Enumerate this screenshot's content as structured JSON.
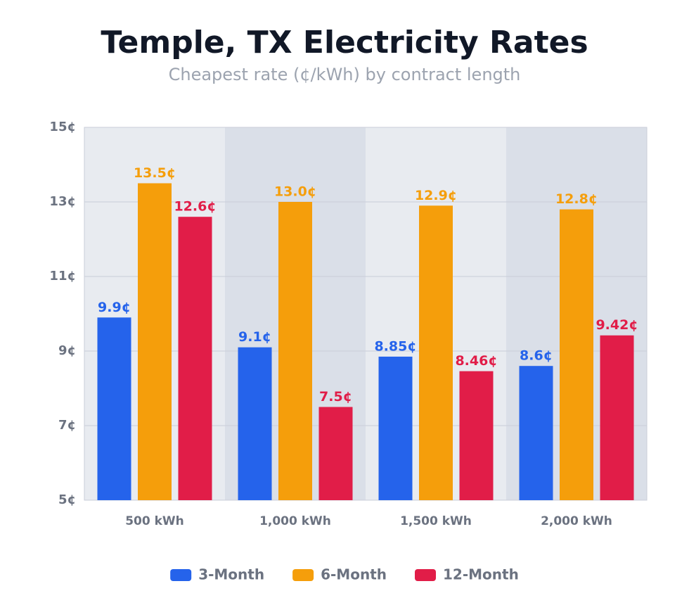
{
  "chart_data": {
    "type": "bar",
    "title": "Temple, TX Electricity Rates",
    "subtitle": "Cheapest rate (¢/kWh) by contract length",
    "categories": [
      "500 kWh",
      "1,000 kWh",
      "1,500 kWh",
      "2,000 kWh"
    ],
    "series": [
      {
        "name": "3-Month",
        "color": "#2563eb",
        "values": [
          9.9,
          9.1,
          8.85,
          8.6
        ],
        "value_labels": [
          "9.9¢",
          "9.1¢",
          "8.85¢",
          "8.6¢"
        ]
      },
      {
        "name": "6-Month",
        "color": "#f59e0b",
        "values": [
          13.5,
          13.0,
          12.9,
          12.8
        ],
        "value_labels": [
          "13.5¢",
          "13.0¢",
          "12.9¢",
          "12.8¢"
        ]
      },
      {
        "name": "12-Month",
        "color": "#e11d48",
        "values": [
          12.6,
          7.5,
          8.46,
          9.42
        ],
        "value_labels": [
          "12.6¢",
          "7.5¢",
          "8.46¢",
          "9.42¢"
        ]
      }
    ],
    "ylim": [
      5,
      15
    ],
    "yticks": [
      {
        "value": 5,
        "label": "5¢"
      },
      {
        "value": 7,
        "label": "7¢"
      },
      {
        "value": 9,
        "label": "9¢"
      },
      {
        "value": 11,
        "label": "11¢"
      },
      {
        "value": 13,
        "label": "13¢"
      },
      {
        "value": 15,
        "label": "15¢"
      }
    ],
    "grid": true,
    "legend": "bottom"
  }
}
